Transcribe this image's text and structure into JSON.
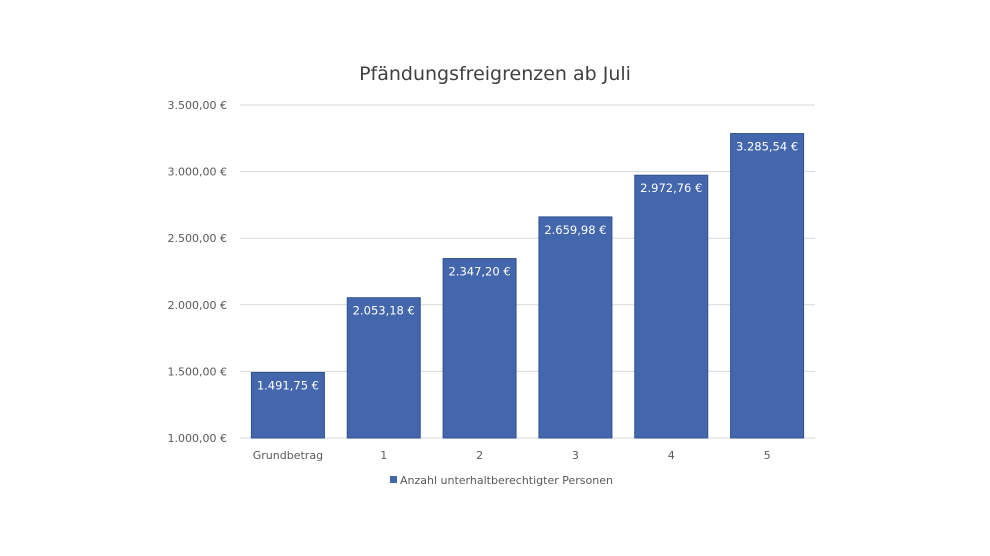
{
  "chart_data": {
    "type": "bar",
    "title": "Pfändungsfreigrenzen ab Juli",
    "categories": [
      "Grundbetrag",
      "1",
      "2",
      "3",
      "4",
      "5"
    ],
    "series": [
      {
        "name": "Anzahl unterhaltberechtigter Personen",
        "values": [
          1491.75,
          2053.18,
          2347.2,
          2659.98,
          2972.76,
          3285.54
        ],
        "labels": [
          "1.491,75 €",
          "2.053,18 €",
          "2.347,20 €",
          "2.659,98 €",
          "2.972,76 €",
          "3.285,54 €"
        ],
        "color": "#4466ad"
      }
    ],
    "ylim": [
      1000,
      3500
    ],
    "yticks": [
      1000,
      1500,
      2000,
      2500,
      3000,
      3500
    ],
    "ytick_labels": [
      "1.000,00 €",
      "1.500,00 €",
      "2.000,00 €",
      "2.500,00 €",
      "3.000,00 €",
      "3.500,00 €"
    ],
    "xlabel": "",
    "ylabel": "",
    "grid": true,
    "legend_position": "bottom"
  }
}
